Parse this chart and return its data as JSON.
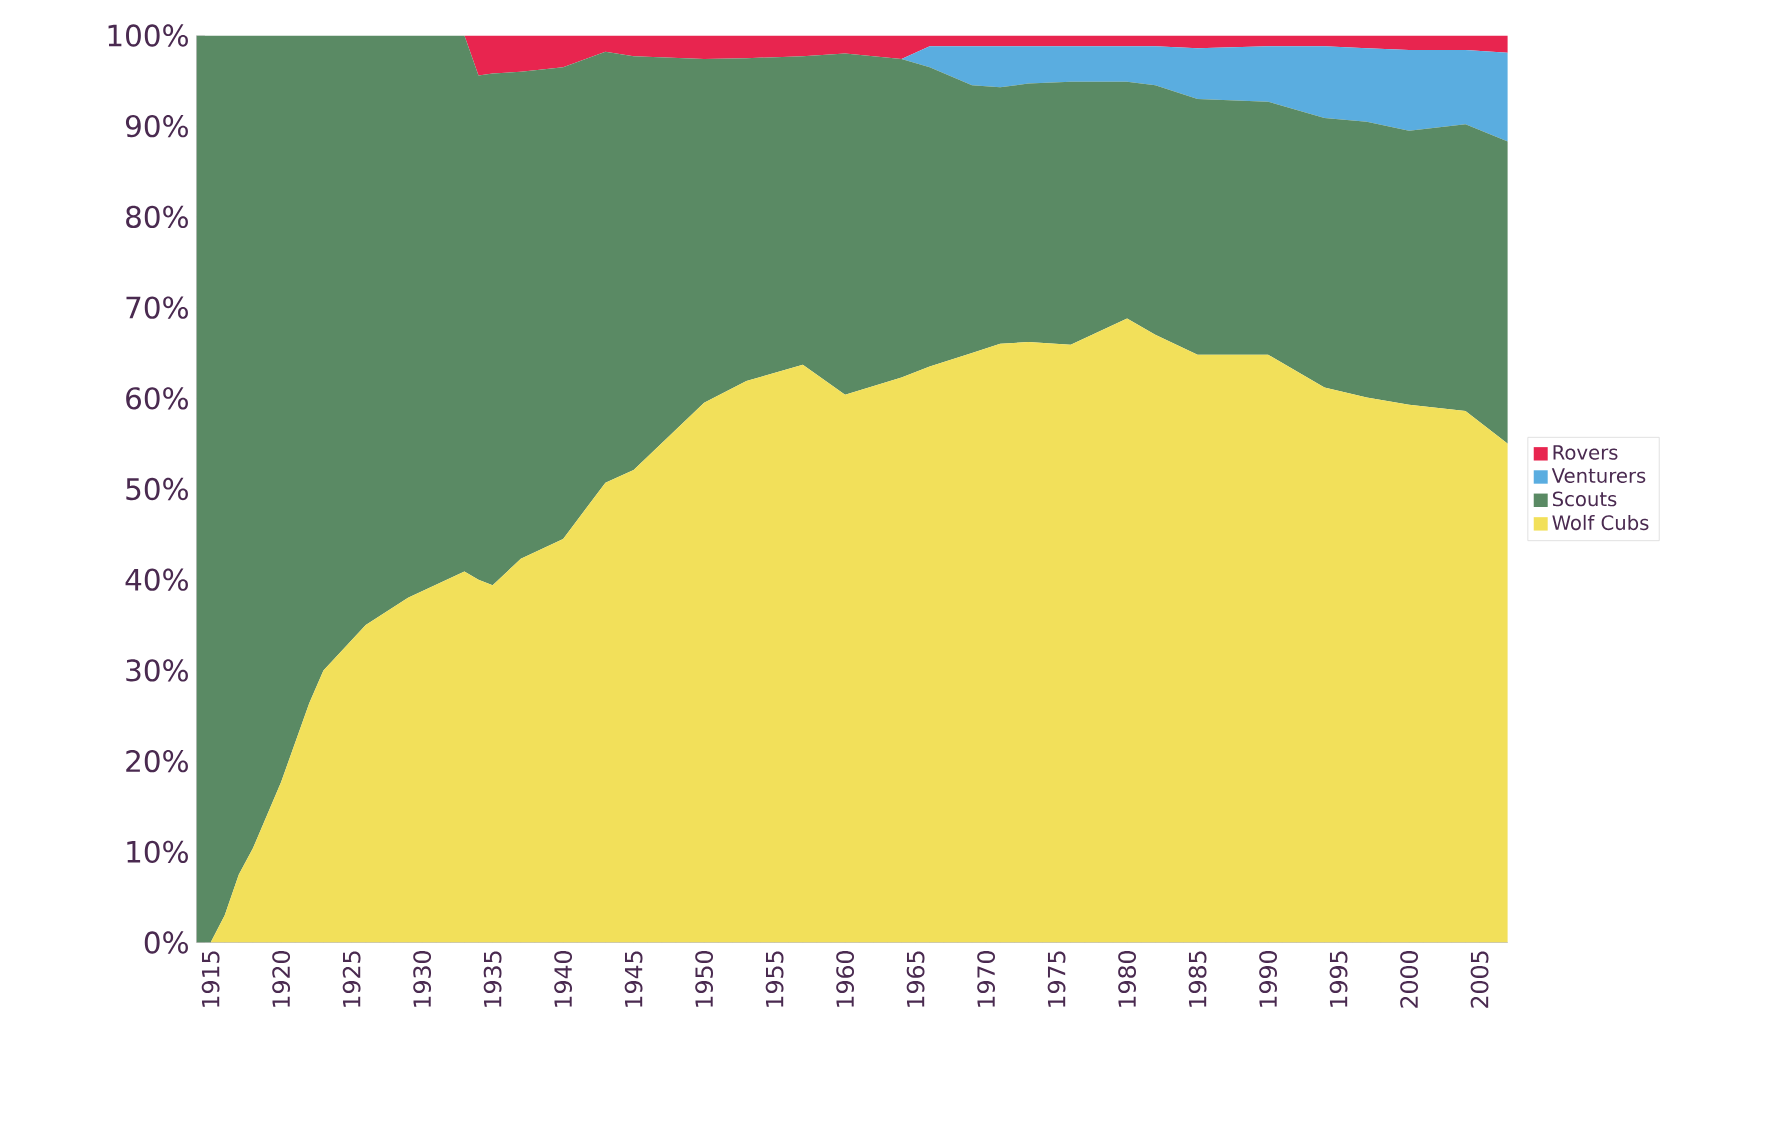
{
  "chart_data": {
    "type": "area",
    "stacked": true,
    "legend": "right",
    "x": [
      1914,
      1915,
      1916,
      1917,
      1918,
      1920,
      1922,
      1923,
      1926,
      1929,
      1933,
      1934,
      1935,
      1937,
      1940,
      1943,
      1945,
      1950,
      1953,
      1957,
      1960,
      1964,
      1966,
      1969,
      1971,
      1973,
      1976,
      1980,
      1982,
      1985,
      1990,
      1994,
      1997,
      2000,
      2004,
      2007
    ],
    "series": [
      {
        "name": "Wolf Cubs",
        "color": "#f2e05a",
        "values": [
          0,
          0,
          3,
          7.5,
          10.4,
          17.7,
          26.4,
          30,
          35,
          38,
          40.9,
          40,
          39.4,
          42.3,
          44.5,
          50.7,
          52.1,
          59.5,
          61.9,
          63.7,
          60.4,
          62.3,
          63.5,
          65,
          66,
          66.2,
          65.9,
          68.8,
          67,
          64.8,
          64.8,
          61.2,
          60.1,
          59.3,
          58.6,
          55
        ]
      },
      {
        "name": "Scouts",
        "color": "#5a8a64",
        "values": [
          100,
          100,
          97,
          92.5,
          89.6,
          82.3,
          73.6,
          70,
          65,
          62,
          59.1,
          55.6,
          56.4,
          53.7,
          52,
          47.5,
          45.6,
          37.9,
          35.6,
          34,
          37.6,
          35.1,
          33,
          29.5,
          28.3,
          28.5,
          29,
          26.1,
          27.5,
          28.2,
          27.9,
          29.7,
          30.4,
          30.2,
          31.6,
          33.3
        ]
      },
      {
        "name": "Venturers",
        "color": "#5aade0",
        "values": [
          0,
          0,
          0,
          0,
          0,
          0,
          0,
          0,
          0,
          0,
          0,
          0,
          0,
          0,
          0,
          0,
          0,
          0,
          0,
          0,
          0,
          0,
          2.3,
          4.3,
          4.5,
          4.1,
          3.9,
          3.9,
          4.3,
          5.6,
          6.1,
          7.9,
          8.1,
          8.9,
          8.2,
          9.8
        ]
      },
      {
        "name": "Rovers",
        "color": "#e8254f",
        "values": [
          0,
          0,
          0,
          0,
          0,
          0,
          0,
          0,
          0,
          0,
          0,
          4.4,
          4.2,
          4,
          3.5,
          1.8,
          2.3,
          2.6,
          2.5,
          2.3,
          2,
          2.6,
          1.2,
          1.2,
          1.2,
          1.2,
          1.2,
          1.2,
          1.2,
          1.4,
          1.2,
          1.2,
          1.4,
          1.6,
          1.6,
          1.9
        ]
      }
    ],
    "xlim": [
      1914,
      2007
    ],
    "ylim": [
      0,
      100
    ],
    "xticks": [
      1915,
      1920,
      1925,
      1930,
      1935,
      1940,
      1945,
      1950,
      1955,
      1960,
      1965,
      1970,
      1975,
      1980,
      1985,
      1990,
      1995,
      2000,
      2005
    ],
    "yticks": [
      {
        "value": 0,
        "label": "0%"
      },
      {
        "value": 10,
        "label": "10%"
      },
      {
        "value": 20,
        "label": "20%"
      },
      {
        "value": 30,
        "label": "30%"
      },
      {
        "value": 40,
        "label": "40%"
      },
      {
        "value": 50,
        "label": "50%"
      },
      {
        "value": 60,
        "label": "60%"
      },
      {
        "value": 70,
        "label": "70%"
      },
      {
        "value": 80,
        "label": "80%"
      },
      {
        "value": 90,
        "label": "90%"
      },
      {
        "value": 100,
        "label": "100%"
      }
    ]
  }
}
